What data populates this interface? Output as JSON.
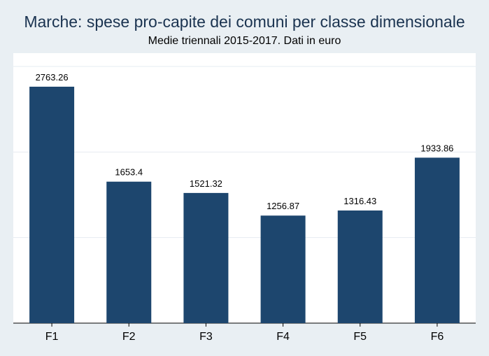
{
  "chart_data": {
    "type": "bar",
    "title": "Marche: spese pro-capite dei comuni per classe dimensionale",
    "subtitle": "Medie triennali 2015-2017. Dati in euro",
    "categories": [
      "F1",
      "F2",
      "F3",
      "F4",
      "F5",
      "F6"
    ],
    "values": [
      2763.26,
      1653.4,
      1521.32,
      1256.87,
      1316.43,
      1933.86
    ],
    "value_labels": [
      "2763.26",
      "1653.4",
      "1521.32",
      "1256.87",
      "1316.43",
      "1933.86"
    ],
    "xlabel": "",
    "ylabel": "",
    "ylim": [
      0,
      3000
    ],
    "gridlines": [
      1000,
      2000,
      3000
    ],
    "grid": true,
    "legend": "none",
    "colors": {
      "bar": "#1d466e",
      "background": "#e9eff3",
      "plot_background": "#ffffff",
      "grid": "#e6ecf1",
      "title": "#1a3350"
    }
  }
}
